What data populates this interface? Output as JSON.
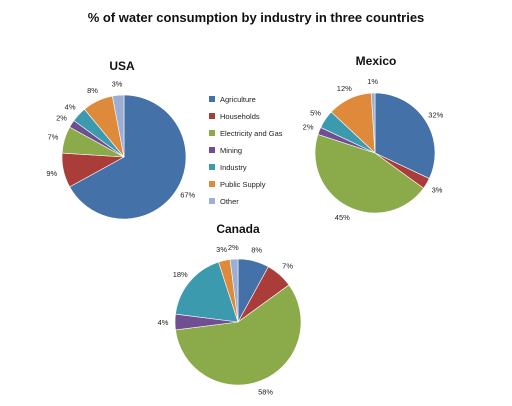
{
  "chart_data": {
    "type": "pie",
    "title": "% of water consumption by industry in three countries",
    "categories": [
      "Agriculture",
      "Households",
      "Electricity and Gas",
      "Mining",
      "Industry",
      "Public Supply",
      "Other"
    ],
    "colors": [
      "#4472A8",
      "#AA3D3A",
      "#8BAA4A",
      "#6F4F91",
      "#3B9AAE",
      "#DE8A3A",
      "#9AAFD3"
    ],
    "legend_position": "center",
    "pies": [
      {
        "name": "USA",
        "values": [
          67,
          9,
          7,
          2,
          4,
          8,
          3
        ]
      },
      {
        "name": "Mexico",
        "values": [
          32,
          3,
          45,
          2,
          5,
          12,
          1
        ]
      },
      {
        "name": "Canada",
        "values": [
          8,
          7,
          58,
          4,
          18,
          3,
          2
        ]
      }
    ]
  }
}
